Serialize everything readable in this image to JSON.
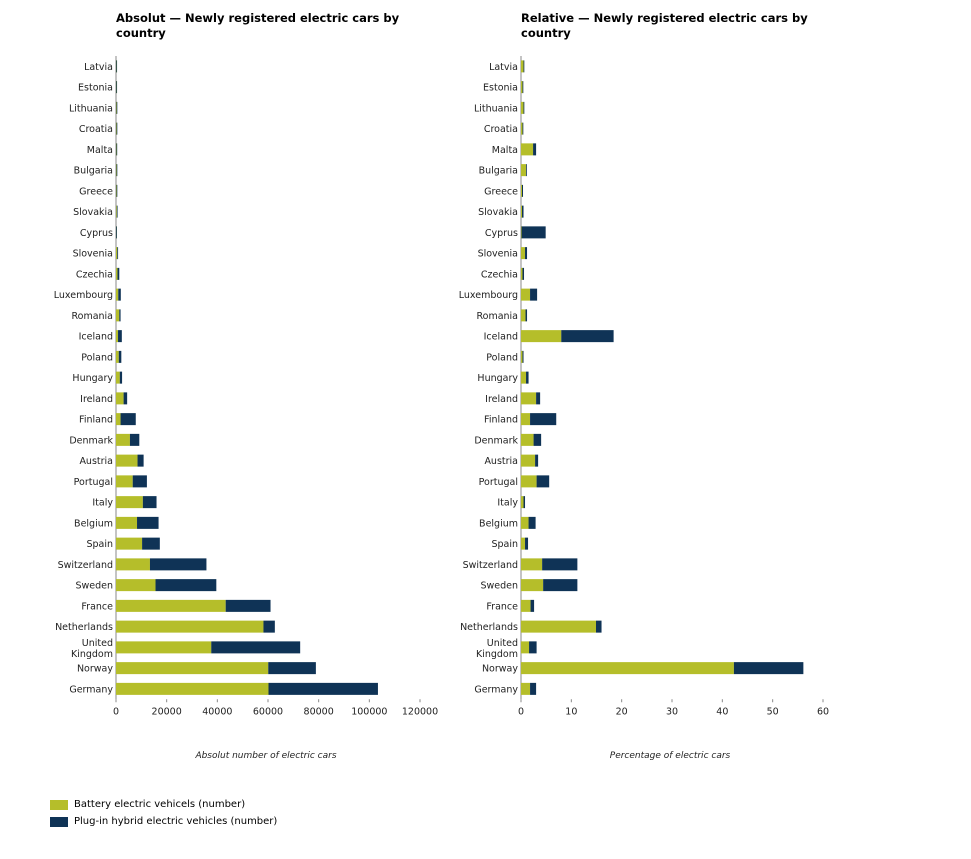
{
  "colors": {
    "bev": "#b5be2a",
    "phev": "#0f3356",
    "axis": "#888888"
  },
  "chart_data": [
    {
      "type": "bar",
      "orientation": "horizontal",
      "stacked": true,
      "title": "Absolut — Newly registered electric cars by country",
      "xlabel": "Absolut number of electric cars",
      "xlim": [
        0,
        120000
      ],
      "xticks": [
        0,
        20000,
        40000,
        60000,
        80000,
        100000,
        120000
      ],
      "xtick_labels": [
        "0",
        "20000",
        "40000",
        "60000",
        "80000",
        "100000",
        "120000"
      ],
      "categories": [
        "Latvia",
        "Estonia",
        "Lithuania",
        "Croatia",
        "Malta",
        "Bulgaria",
        "Greece",
        "Slovakia",
        "Cyprus",
        "Slovenia",
        "Czechia",
        "Luxembourg",
        "Romania",
        "Iceland",
        "Poland",
        "Hungary",
        "Ireland",
        "Finland",
        "Denmark",
        "Austria",
        "Portugal",
        "Italy",
        "Belgium",
        "Spain",
        "Switzerland",
        "Sweden",
        "France",
        "Netherlands",
        "United Kingdom",
        "Norway",
        "Germany"
      ],
      "series": [
        {
          "name": "Battery electric vehicels (number)",
          "values": [
            100,
            100,
            200,
            200,
            150,
            200,
            200,
            300,
            30,
            500,
            600,
            900,
            1300,
            800,
            1100,
            1500,
            3000,
            1800,
            5500,
            8500,
            6600,
            10600,
            8300,
            10300,
            13400,
            15600,
            43300,
            58200,
            37600,
            60100,
            60200
          ]
        },
        {
          "name": "Plug-in hybrid electric vehicles (number)",
          "values": [
            100,
            100,
            100,
            100,
            50,
            100,
            300,
            300,
            170,
            300,
            700,
            1000,
            500,
            1500,
            1000,
            900,
            1400,
            6000,
            3700,
            2400,
            5600,
            5400,
            8500,
            7000,
            22300,
            24000,
            17700,
            4500,
            35100,
            18800,
            43200
          ]
        }
      ]
    },
    {
      "type": "bar",
      "orientation": "horizontal",
      "stacked": true,
      "title": "Relative — Newly registered electric cars by country",
      "xlabel": "Percentage of electric cars",
      "xlim": [
        0,
        60
      ],
      "xticks": [
        0,
        10,
        20,
        30,
        40,
        50,
        60
      ],
      "xtick_labels": [
        "0",
        "10",
        "20",
        "30",
        "40",
        "50",
        "60"
      ],
      "categories": [
        "Latvia",
        "Estonia",
        "Lithuania",
        "Croatia",
        "Malta",
        "Bulgaria",
        "Greece",
        "Slovakia",
        "Cyprus",
        "Slovenia",
        "Czechia",
        "Luxembourg",
        "Romania",
        "Iceland",
        "Poland",
        "Hungary",
        "Ireland",
        "Finland",
        "Denmark",
        "Austria",
        "Portugal",
        "Italy",
        "Belgium",
        "Spain",
        "Switzerland",
        "Sweden",
        "France",
        "Netherlands",
        "United Kingdom",
        "Norway",
        "Germany"
      ],
      "series": [
        {
          "name": "Battery electric vehicels (number)",
          "values": [
            0.5,
            0.3,
            0.5,
            0.3,
            2.4,
            1.0,
            0.2,
            0.2,
            0.1,
            0.8,
            0.3,
            1.8,
            0.9,
            8.0,
            0.3,
            1.0,
            3.0,
            1.8,
            2.5,
            2.8,
            3.1,
            0.5,
            1.5,
            0.8,
            4.2,
            4.4,
            1.9,
            14.9,
            1.6,
            42.3,
            1.8
          ]
        },
        {
          "name": "Plug-in hybrid electric vehicles (number)",
          "values": [
            0.1,
            0.1,
            0.1,
            0.1,
            0.6,
            0.1,
            0.2,
            0.3,
            4.8,
            0.4,
            0.3,
            1.4,
            0.3,
            10.4,
            0.2,
            0.5,
            0.8,
            5.2,
            1.5,
            0.6,
            2.5,
            0.3,
            1.4,
            0.6,
            7.0,
            6.8,
            0.7,
            1.1,
            1.5,
            13.8,
            1.2
          ]
        }
      ]
    }
  ],
  "legend": {
    "items": [
      {
        "label": "Battery electric vehicels (number)",
        "color": "#b5be2a"
      },
      {
        "label": "Plug-in hybrid electric vehicles (number)",
        "color": "#0f3356"
      }
    ]
  }
}
